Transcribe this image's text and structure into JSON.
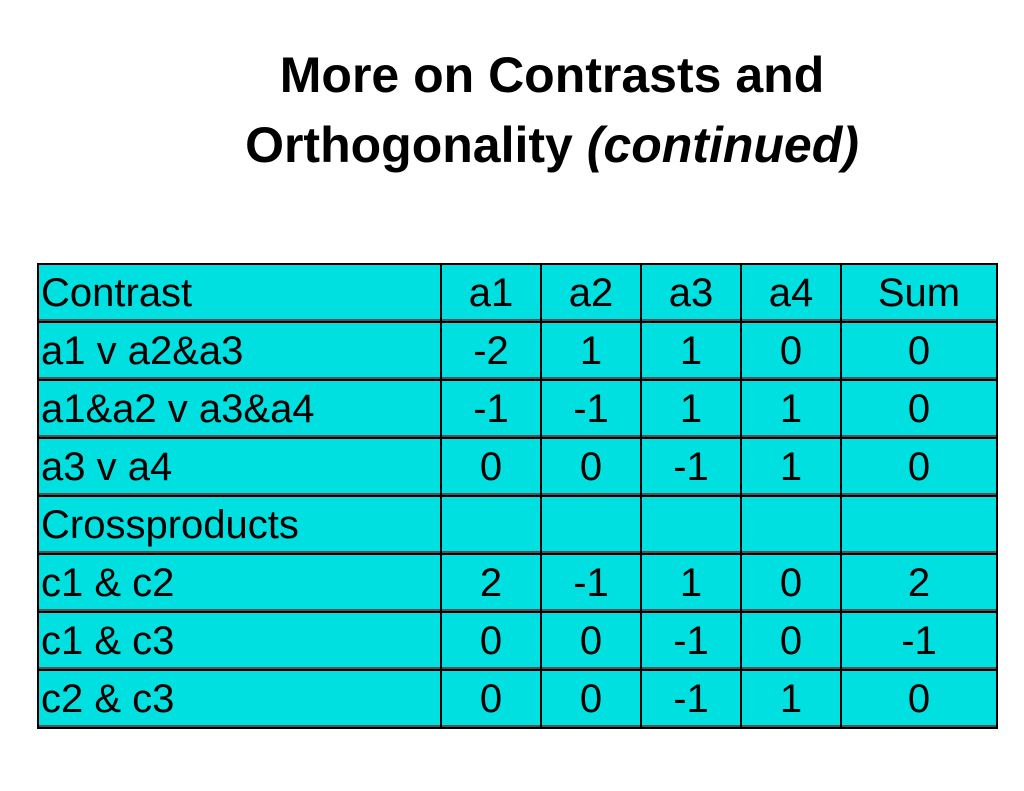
{
  "header": {
    "title_line1": "More on Contrasts and",
    "title_line2": "Orthogonality",
    "title_emphasis": "(continued)"
  },
  "table": {
    "columns": [
      "Contrast",
      "a1",
      "a2",
      "a3",
      "a4",
      "Sum"
    ],
    "rows": [
      [
        "a1 v a2&a3",
        -2,
        1,
        1,
        0,
        0
      ],
      [
        "a1&a2 v a3&a4",
        -1,
        -1,
        1,
        1,
        0
      ],
      [
        "a3 v a4",
        0,
        0,
        -1,
        1,
        0
      ],
      [
        "Crossproducts"
      ],
      [
        "c1 & c2",
        2,
        -1,
        1,
        0,
        2
      ],
      [
        "c1 & c3",
        0,
        0,
        -1,
        0,
        -1
      ],
      [
        "c2 & c3",
        0,
        0,
        -1,
        1,
        0
      ]
    ]
  }
}
